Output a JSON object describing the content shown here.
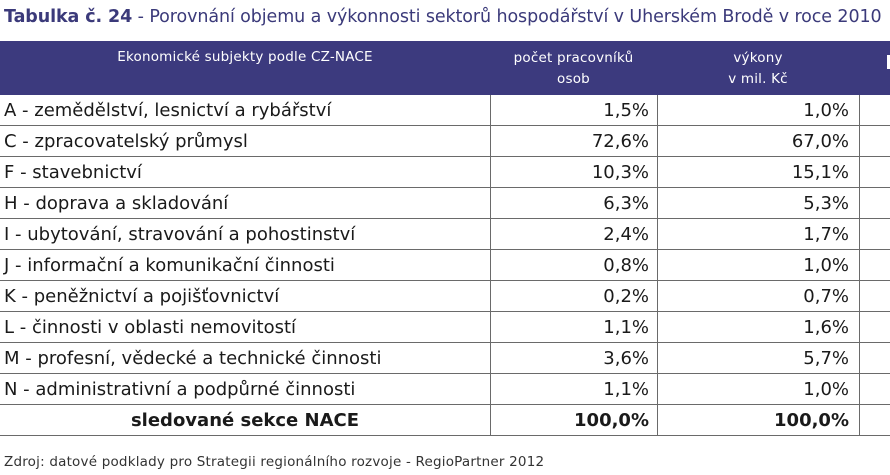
{
  "caption": {
    "lead": "Tabulka č. 24",
    "text": " - Porovnání objemu a výkonnosti sektorů hospodářství v Uherském Brodě v roce 2010"
  },
  "table": {
    "headers": {
      "sector": "Ekonomické subjekty podle CZ-NACE",
      "employees_line1": "počet pracovníků",
      "employees_line2": "osob",
      "output_line1": "výkony",
      "output_line2": "v mil. Kč"
    },
    "rows": [
      {
        "sector": "A - zemědělství, lesnictví a rybářství",
        "employees": "1,5%",
        "output": "1,0%"
      },
      {
        "sector": "C - zpracovatelský průmysl",
        "employees": "72,6%",
        "output": "67,0%"
      },
      {
        "sector": "F - stavebnictví",
        "employees": "10,3%",
        "output": "15,1%"
      },
      {
        "sector": "H - doprava a skladování",
        "employees": "6,3%",
        "output": "5,3%"
      },
      {
        "sector": "I - ubytování, stravování a pohostinství",
        "employees": "2,4%",
        "output": "1,7%"
      },
      {
        "sector": "J - informační a komunikační činnosti",
        "employees": "0,8%",
        "output": "1,0%"
      },
      {
        "sector": "K - peněžnictví a pojišťovnictví",
        "employees": "0,2%",
        "output": "0,7%"
      },
      {
        "sector": "L - činnosti v oblasti nemovitostí",
        "employees": "1,1%",
        "output": "1,6%"
      },
      {
        "sector": "M - profesní, vědecké a technické činnosti",
        "employees": "3,6%",
        "output": "5,7%"
      },
      {
        "sector": "N - administrativní a podpůrné činnosti",
        "employees": "1,1%",
        "output": "1,0%"
      }
    ],
    "total": {
      "sector": "sledované sekce NACE",
      "employees": "100,0%",
      "output": "100,0%"
    }
  },
  "source": "Zdroj: datové podklady pro Strategii regionálního rozvoje - RegioPartner 2012"
}
